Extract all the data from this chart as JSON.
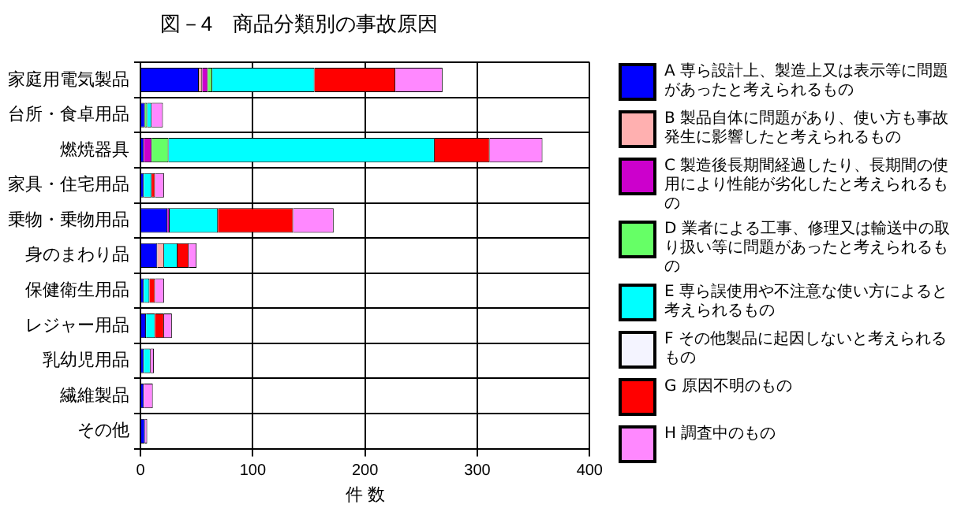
{
  "chart_data": {
    "type": "bar",
    "orientation": "horizontal",
    "stacked": true,
    "title": "図－4　商品分類別の事故原因",
    "xlabel": "件 数",
    "categories": [
      "家庭用電気製品",
      "台所・食卓用品",
      "燃焼器具",
      "家具・住宅用品",
      "乗物・乗物用品",
      "身のまわり品",
      "保健衛生用品",
      "レジャー用品",
      "乳幼児用品",
      "繊維製品",
      "その他"
    ],
    "xlim": [
      0,
      400
    ],
    "xticks": [
      0,
      100,
      200,
      300,
      400
    ],
    "grid": true,
    "legend": "right",
    "series": [
      {
        "name": "A 専ら設計上、製造上又は表示等に問題があったと考えられるもの",
        "color": "#0000ff",
        "values": [
          52,
          4,
          3,
          3,
          24,
          15,
          3,
          5,
          3,
          3,
          4
        ]
      },
      {
        "name": "B 製品自体に問題があり、使い方も事故発生に影響したと考えられるもの",
        "color": "#ffb0b0",
        "values": [
          3,
          0,
          0,
          0,
          0,
          6,
          0,
          0,
          0,
          0,
          0
        ]
      },
      {
        "name": "C 製造後長期間経過したり、長期間の使用により性能が劣化したと考えられるもの",
        "color": "#cc00cc",
        "values": [
          5,
          0,
          7,
          0,
          2,
          0,
          0,
          0,
          0,
          0,
          0
        ]
      },
      {
        "name": "D 業者による工事、修理又は輸送中の取り扱い等に問題があったと考えられるもの",
        "color": "#66ff66",
        "values": [
          4,
          2,
          15,
          0,
          0,
          0,
          0,
          0,
          0,
          0,
          0
        ]
      },
      {
        "name": "E 専ら誤使用や不注意な使い方によると考えられるもの",
        "color": "#00ffff",
        "values": [
          91,
          4,
          237,
          7,
          43,
          12,
          5,
          8,
          6,
          0,
          0
        ]
      },
      {
        "name": "F その他製品に起因しないと考えられるもの",
        "color": "#f4f4ff",
        "values": [
          0,
          0,
          0,
          0,
          0,
          0,
          0,
          0,
          0,
          0,
          0
        ]
      },
      {
        "name": "G 原因不明のもの",
        "color": "#ff0000",
        "values": [
          72,
          0,
          49,
          3,
          67,
          10,
          5,
          8,
          0,
          0,
          0
        ]
      },
      {
        "name": "H 調査中のもの",
        "color": "#ff88ff",
        "values": [
          42,
          10,
          47,
          8,
          36,
          7,
          8,
          7,
          3,
          8,
          2
        ]
      }
    ]
  }
}
